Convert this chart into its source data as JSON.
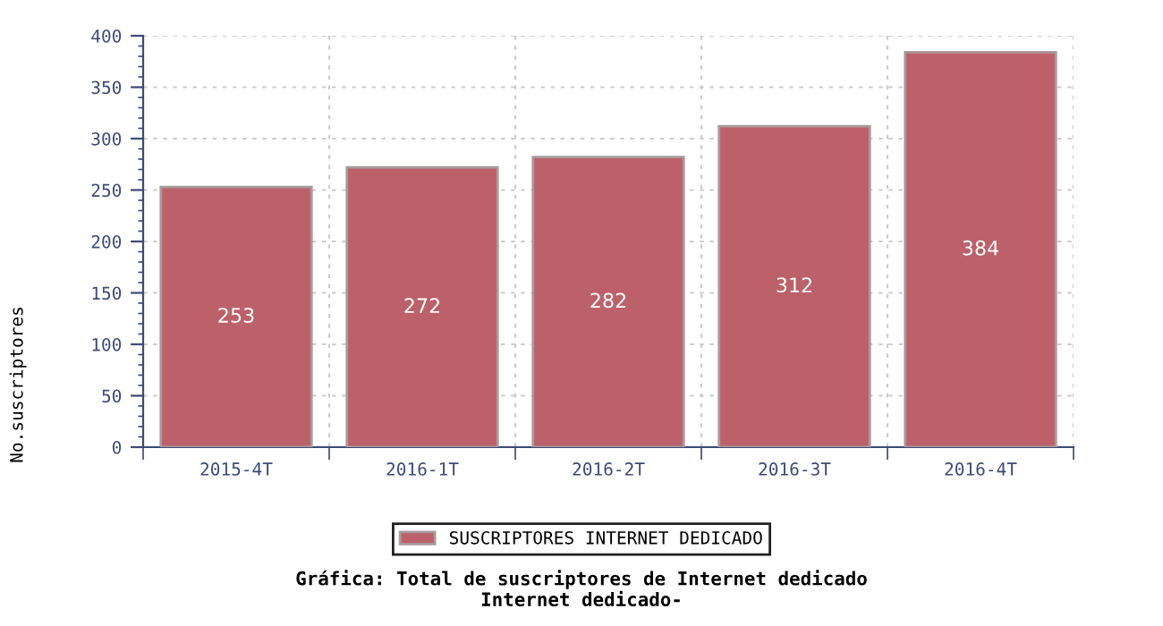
{
  "chart_data": {
    "type": "bar",
    "title": "Gráfica: Total de suscriptores de Internet dedicado",
    "subtitle": "Internet dedicado-",
    "ylabel": "No.suscriptores",
    "categories": [
      "2015-4T",
      "2016-1T",
      "2016-2T",
      "2016-3T",
      "2016-4T"
    ],
    "series": [
      {
        "name": "SUSCRIPTORES INTERNET DEDICADO",
        "color": "#bc616a",
        "values": [
          253,
          272,
          282,
          312,
          384
        ]
      }
    ],
    "ylim": [
      0,
      400
    ],
    "yticks": [
      0,
      50,
      100,
      150,
      200,
      250,
      300,
      350,
      400
    ],
    "grid": true,
    "legend": "bottom",
    "data_labels": true
  }
}
